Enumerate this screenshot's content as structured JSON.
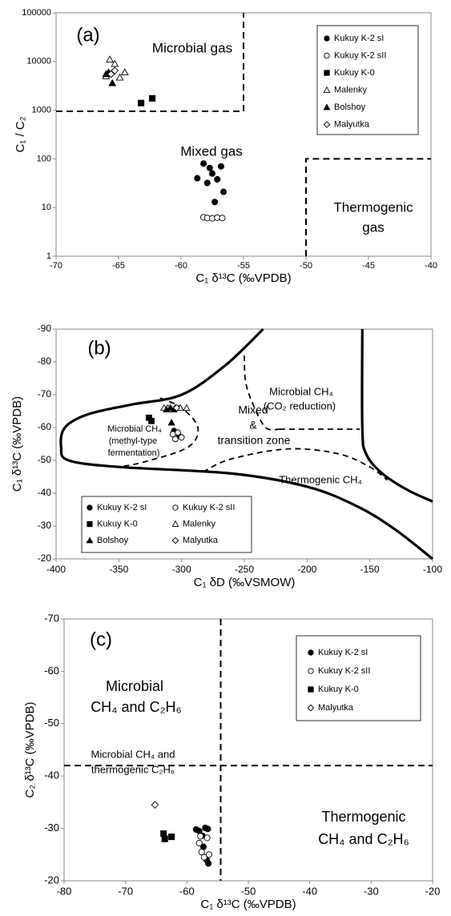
{
  "chart_data": [
    {
      "panel_label": "(a)",
      "type": "scatter",
      "xlabel": "C₁ δ¹³C (‰VPDB)",
      "ylabel": "C₁ / C₂",
      "xlim": [
        -70,
        -40
      ],
      "ylim": [
        1,
        100000
      ],
      "y_scale": "log",
      "grid": false,
      "legend_position": "top-right",
      "x_ticks": [
        "-70",
        "-65",
        "-60",
        "-55",
        "-50",
        "-45",
        "-40"
      ],
      "y_ticks": [
        "1",
        "10",
        "100",
        "1000",
        "10000",
        "100000"
      ],
      "region_labels": [
        "Microbial gas",
        "Mixed gas",
        "Thermogenic",
        "gas"
      ],
      "series": [
        {
          "name": "Kukuy K-2 sI",
          "marker": "circle-filled",
          "points": [
            [
              -58.7,
              40
            ],
            [
              -58.2,
              80
            ],
            [
              -57.9,
              32
            ],
            [
              -57.7,
              65
            ],
            [
              -57.5,
              50
            ],
            [
              -57.3,
              13
            ],
            [
              -57.1,
              38
            ],
            [
              -56.8,
              70
            ],
            [
              -56.6,
              21
            ]
          ]
        },
        {
          "name": "Kukuy K-2 sII",
          "marker": "circle-open",
          "points": [
            [
              -58.2,
              6.3
            ],
            [
              -57.9,
              6.1
            ],
            [
              -57.5,
              6.0
            ],
            [
              -57.1,
              6.2
            ],
            [
              -56.7,
              6.1
            ]
          ]
        },
        {
          "name": "Kukuy K-0",
          "marker": "square-filled",
          "points": [
            [
              -63.2,
              1400
            ],
            [
              -62.3,
              1750
            ]
          ]
        },
        {
          "name": "Malenky",
          "marker": "triangle-open",
          "points": [
            [
              -66.0,
              5000
            ],
            [
              -65.7,
              11000
            ],
            [
              -65.3,
              9000
            ],
            [
              -64.9,
              4700
            ],
            [
              -64.5,
              6000
            ]
          ]
        },
        {
          "name": "Bolshoy",
          "marker": "triangle-filled",
          "points": [
            [
              -66.0,
              5500
            ],
            [
              -65.8,
              6000
            ],
            [
              -65.5,
              3600
            ]
          ]
        },
        {
          "name": "Malyutka",
          "marker": "diamond-open",
          "points": [
            [
              -65.6,
              5500
            ],
            [
              -65.3,
              6500
            ]
          ]
        }
      ]
    },
    {
      "panel_label": "(b)",
      "type": "scatter",
      "xlabel": "C₁ δD (‰VSMOW)",
      "ylabel": "C₁ δ¹³C (‰VPDB)",
      "xlim": [
        -400,
        -100
      ],
      "ylim": [
        -90,
        -20
      ],
      "y_inverted": true,
      "grid": false,
      "legend_position": "bottom-left",
      "x_ticks": [
        "-400",
        "-350",
        "-300",
        "-250",
        "-200",
        "-150",
        "-100"
      ],
      "y_ticks": [
        "-90",
        "-80",
        "-70",
        "-60",
        "-50",
        "-40",
        "-30",
        "-20"
      ],
      "region_labels": [
        "Microbial CH₄",
        "(CO₂ reduction)",
        "Mixed",
        "&",
        "transition zone",
        "Microbial CH₄",
        "(methyl-type",
        "fermentation)",
        "Thermogenic CH₄"
      ],
      "series": [
        {
          "name": "Kukuy K-2 sI",
          "marker": "circle-filled",
          "points": [
            [
              -306,
              -59
            ],
            [
              -302,
              -57.5
            ]
          ]
        },
        {
          "name": "Kukuy K-2 sII",
          "marker": "circle-open",
          "points": [
            [
              -307,
              -58
            ],
            [
              -305,
              -56.5
            ],
            [
              -303,
              -58.5
            ],
            [
              -300,
              -57
            ]
          ]
        },
        {
          "name": "Kukuy K-0",
          "marker": "square-filled",
          "points": [
            [
              -326,
              -63
            ],
            [
              -324,
              -62
            ]
          ]
        },
        {
          "name": "Malenky",
          "marker": "triangle-open",
          "points": [
            [
              -314,
              -66
            ],
            [
              -311,
              -66
            ],
            [
              -308,
              -65.5
            ],
            [
              -305,
              -66
            ],
            [
              -301,
              -66
            ],
            [
              -296,
              -66
            ]
          ]
        },
        {
          "name": "Bolshoy",
          "marker": "triangle-filled",
          "points": [
            [
              -312,
              -65.5
            ],
            [
              -309,
              -66
            ],
            [
              -306,
              -65.5
            ],
            [
              -308,
              -61.5
            ]
          ]
        },
        {
          "name": "Malyutka",
          "marker": "diamond-open",
          "points": [
            [
              -304,
              -66
            ]
          ]
        }
      ]
    },
    {
      "panel_label": "(c)",
      "type": "scatter",
      "xlabel": "C₁ δ¹³C (‰VPDB)",
      "ylabel": "C₂ δ¹³C (‰VPDB)",
      "xlim": [
        -80,
        -20
      ],
      "ylim": [
        -70,
        -20
      ],
      "y_inverted": true,
      "grid": false,
      "legend_position": "top-right",
      "x_ticks": [
        "-80",
        "-70",
        "-60",
        "-50",
        "-40",
        "-30",
        "-20"
      ],
      "y_ticks": [
        "-70",
        "-60",
        "-50",
        "-40",
        "-30",
        "-20"
      ],
      "region_labels": [
        "Microbial",
        "CH₄ and C₂H₆",
        "Microbial CH₄ and",
        "thermogenic C₂H₆",
        "Thermogenic",
        "CH₄ and C₂H₆"
      ],
      "series": [
        {
          "name": "Kukuy K-2 sI",
          "marker": "circle-filled",
          "points": [
            [
              -58.5,
              -29.8
            ],
            [
              -58.0,
              -29.5
            ],
            [
              -57.5,
              -28.6
            ],
            [
              -57.0,
              -30.1
            ],
            [
              -56.6,
              -29.9
            ],
            [
              -57.3,
              -26.5
            ],
            [
              -56.8,
              -24.0
            ],
            [
              -56.5,
              -23.3
            ]
          ]
        },
        {
          "name": "Kukuy K-2 sII",
          "marker": "circle-open",
          "points": [
            [
              -58.0,
              -27.2
            ],
            [
              -57.6,
              -25.5
            ],
            [
              -57.2,
              -24.5
            ],
            [
              -56.7,
              -28.2
            ],
            [
              -56.4,
              -25.0
            ],
            [
              -57.8,
              -28.5
            ]
          ]
        },
        {
          "name": "Kukuy K-0",
          "marker": "square-filled",
          "points": [
            [
              -63.8,
              -29.0
            ],
            [
              -63.6,
              -28.0
            ],
            [
              -62.5,
              -28.4
            ]
          ]
        },
        {
          "name": "Malyutka",
          "marker": "diamond-open",
          "points": [
            [
              -65.2,
              -34.5
            ]
          ]
        }
      ]
    }
  ]
}
